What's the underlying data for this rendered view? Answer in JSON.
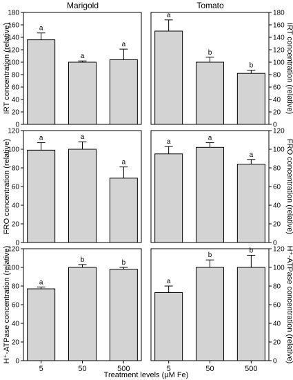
{
  "figure": {
    "xlabel": "Treatment levels (µM Fe)",
    "columns": [
      "Marigold",
      "Tomato"
    ],
    "colors": {
      "bar": "#d3d3d3",
      "edge": "#000000",
      "background": "#ffffff"
    }
  },
  "chart_data": [
    {
      "type": "bar",
      "row": 0,
      "col": 0,
      "categories": [
        "5",
        "50",
        "500"
      ],
      "values": [
        136,
        100,
        104
      ],
      "errors": [
        11,
        2,
        17
      ],
      "letters": [
        "a",
        "a",
        "a"
      ],
      "ylabel": "IRT concentration (relative)",
      "ylim": [
        0,
        180
      ],
      "yticks": [
        0,
        20,
        40,
        60,
        80,
        100,
        120,
        140,
        160,
        180
      ]
    },
    {
      "type": "bar",
      "row": 0,
      "col": 1,
      "categories": [
        "5",
        "50",
        "500"
      ],
      "values": [
        150,
        100,
        82
      ],
      "errors": [
        18,
        8,
        5
      ],
      "letters": [
        "a",
        "b",
        "b"
      ],
      "ylabel": "IRT concentration (relative)",
      "ylim": [
        0,
        180
      ],
      "yticks": [
        0,
        20,
        40,
        60,
        80,
        100,
        120,
        140,
        160,
        180
      ]
    },
    {
      "type": "bar",
      "row": 1,
      "col": 0,
      "categories": [
        "5",
        "50",
        "500"
      ],
      "values": [
        99,
        100,
        69
      ],
      "errors": [
        8,
        8,
        12
      ],
      "letters": [
        "a",
        "a",
        "a"
      ],
      "ylabel": "FRO concentration (relative)",
      "ylim": [
        0,
        120
      ],
      "yticks": [
        0,
        20,
        40,
        60,
        80,
        100,
        120
      ]
    },
    {
      "type": "bar",
      "row": 1,
      "col": 1,
      "categories": [
        "5",
        "50",
        "500"
      ],
      "values": [
        95,
        102,
        84
      ],
      "errors": [
        8,
        5,
        5
      ],
      "letters": [
        "a",
        "a",
        "a"
      ],
      "ylabel": "FRO concentration (relative)",
      "ylim": [
        0,
        120
      ],
      "yticks": [
        0,
        20,
        40,
        60,
        80,
        100,
        120
      ]
    },
    {
      "type": "bar",
      "row": 2,
      "col": 0,
      "categories": [
        "5",
        "50",
        "500"
      ],
      "values": [
        77,
        100,
        98
      ],
      "errors": [
        2,
        3,
        2
      ],
      "letters": [
        "a",
        "b",
        "b"
      ],
      "ylabel": "H⁺-ATPase concentration (relative)",
      "ylim": [
        0,
        120
      ],
      "yticks": [
        0,
        20,
        40,
        60,
        80,
        100,
        120
      ]
    },
    {
      "type": "bar",
      "row": 2,
      "col": 1,
      "categories": [
        "5",
        "50",
        "500"
      ],
      "values": [
        73,
        100,
        100
      ],
      "errors": [
        7,
        8,
        13
      ],
      "letters": [
        "a",
        "b",
        "b"
      ],
      "ylabel": "H⁺-ATPase concentration (relative)",
      "ylim": [
        0,
        120
      ],
      "yticks": [
        0,
        20,
        40,
        60,
        80,
        100,
        120
      ]
    }
  ]
}
